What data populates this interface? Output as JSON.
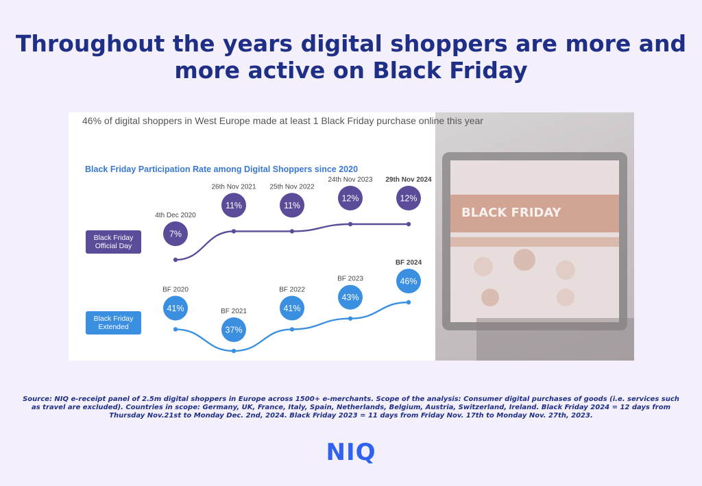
{
  "header": {
    "title_line1": "Throughout the years digital shoppers are more and",
    "title_line2": "more active on Black Friday"
  },
  "panel": {
    "subtitle": "46% of digital shoppers in West Europe made at least 1 Black Friday purchase online this year",
    "photo_text": "BLACK FRIDAY"
  },
  "chart_data": {
    "type": "line",
    "title": "Black Friday Participation Rate among Digital Shoppers since 2020",
    "unit": "%",
    "series": [
      {
        "name": "Black Friday Official Day",
        "color": "#5b4b99",
        "categories": [
          "4th Dec 2020",
          "26th Nov 2021",
          "25th Nov 2022",
          "24th Nov 2023",
          "29th Nov 2024"
        ],
        "values": [
          7,
          11,
          11,
          12,
          12
        ],
        "labels": [
          "7%",
          "11%",
          "11%",
          "12%",
          "12%"
        ]
      },
      {
        "name": "Black Friday Extended",
        "color": "#3a8fe0",
        "categories": [
          "BF 2020",
          "BF 2021",
          "BF 2022",
          "BF 2023",
          "BF 2024"
        ],
        "values": [
          41,
          37,
          41,
          43,
          46
        ],
        "labels": [
          "41%",
          "37%",
          "41%",
          "43%",
          "46%"
        ]
      }
    ],
    "legend": [
      "Black Friday\nOfficial Day",
      "Black Friday\nExtended"
    ]
  },
  "footer": {
    "source": "Source: NIQ e-receipt panel of 2.5m digital shoppers in Europe across 1500+ e-merchants. Scope of the analysis: Consumer digital purchases of goods (i.e. services such as travel are excluded). Countries in scope: Germany, UK, France, Italy, Spain, Netherlands, Belgium, Austria, Switzerland, Ireland. Black Friday 2024 = 12 days from Thursday Nov.21st to Monday Dec. 2nd, 2024. Black Friday 2023 = 11 days from Friday Nov. 17th to Monday Nov. 27th, 2023.",
    "logo": "NIQ"
  }
}
